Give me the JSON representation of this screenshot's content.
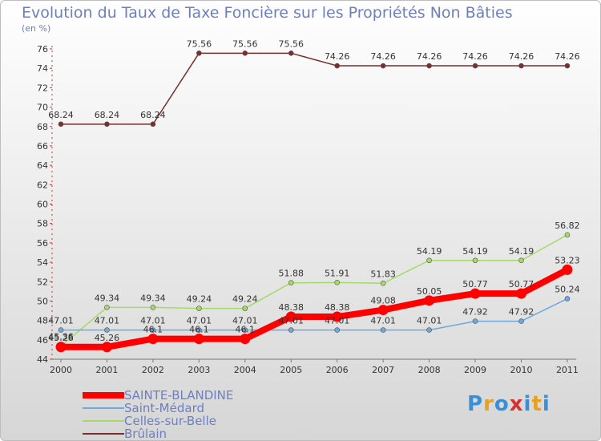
{
  "title": "Evolution du Taux de Taxe Foncière sur les Propriétés Non Bâties",
  "unit_label": "(en %)",
  "logo": {
    "letters": [
      "P",
      "r",
      "o",
      "x",
      "i",
      "t",
      "i"
    ],
    "colors": [
      "#3a8fd8",
      "#e8a020",
      "#3a8fd8",
      "#d83030",
      "#3a8fd8",
      "#e8a020",
      "#3a8fd8"
    ]
  },
  "chart_data": {
    "type": "line",
    "title": "Evolution du Taux de Taxe Foncière sur les Propriétés Non Bâties",
    "ylabel": "(en %)",
    "xlabel": "",
    "x": [
      "2000",
      "2001",
      "2002",
      "2003",
      "2004",
      "2005",
      "2006",
      "2007",
      "2008",
      "2009",
      "2010",
      "2011"
    ],
    "ylim": [
      44,
      76
    ],
    "yticks": [
      44,
      46,
      48,
      50,
      52,
      54,
      56,
      58,
      60,
      62,
      64,
      66,
      68,
      70,
      72,
      74,
      76
    ],
    "series": [
      {
        "name": "SAINTE-BLANDINE",
        "color": "#ff0000",
        "width": 8,
        "values": [
          45.26,
          45.26,
          46.1,
          46.1,
          46.1,
          48.38,
          48.38,
          49.08,
          50.05,
          50.77,
          50.77,
          53.23
        ],
        "labels": [
          "45.26",
          "45.26",
          "46.1",
          "46.1",
          "46.1",
          "48.38",
          "48.38",
          "49.08",
          "50.05",
          "50.77",
          "50.77",
          "53.23"
        ]
      },
      {
        "name": "Saint-Médard",
        "color": "#6fa8dc",
        "width": 1.5,
        "values": [
          47.01,
          47.01,
          47.01,
          47.01,
          47.01,
          47.01,
          47.01,
          47.01,
          47.01,
          47.92,
          47.92,
          50.24
        ],
        "labels": [
          "47.01",
          "47.01",
          "47.01",
          "47.01",
          "47.01",
          "47.01",
          "47.01",
          "47.01",
          "47.01",
          "47.92",
          "47.92",
          "50.24"
        ]
      },
      {
        "name": "Celles-sur-Belle",
        "color": "#a6d96a",
        "width": 1.5,
        "values": [
          45.36,
          49.34,
          49.34,
          49.24,
          49.24,
          51.88,
          51.91,
          51.83,
          54.19,
          54.19,
          54.19,
          56.82
        ],
        "labels": [
          "45.36",
          "49.34",
          "49.34",
          "49.24",
          "49.24",
          "51.88",
          "51.91",
          "51.83",
          "54.19",
          "54.19",
          "54.19",
          "56.82"
        ]
      },
      {
        "name": "Brûlain",
        "color": "#7a2e2e",
        "width": 1.5,
        "values": [
          68.24,
          68.24,
          68.24,
          75.56,
          75.56,
          75.56,
          74.26,
          74.26,
          74.26,
          74.26,
          74.26,
          74.26
        ],
        "labels": [
          "68.24",
          "68.24",
          "68.24",
          "75.56",
          "75.56",
          "75.56",
          "74.26",
          "74.26",
          "74.26",
          "74.26",
          "74.26",
          "74.26"
        ]
      }
    ]
  }
}
